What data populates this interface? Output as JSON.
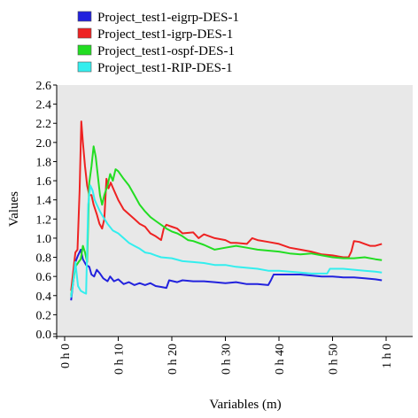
{
  "chart_data": {
    "type": "line",
    "title": "",
    "xlabel": "Variables (m)",
    "ylabel": "Values",
    "xlim": [
      0,
      60
    ],
    "ylim": [
      0,
      2.6
    ],
    "x_ticks": [
      {
        "value": 0,
        "label": "0 h 0"
      },
      {
        "value": 10,
        "label": "0 h 10"
      },
      {
        "value": 20,
        "label": "0 h 20"
      },
      {
        "value": 30,
        "label": "0 h 30"
      },
      {
        "value": 40,
        "label": "0 h 40"
      },
      {
        "value": 50,
        "label": "0 h 50"
      },
      {
        "value": 60,
        "label": "1 h 0"
      }
    ],
    "y_ticks": [
      {
        "value": 0.0,
        "label": "0.0"
      },
      {
        "value": 0.2,
        "label": "0.2"
      },
      {
        "value": 0.4,
        "label": "0.4"
      },
      {
        "value": 0.6,
        "label": "0.6"
      },
      {
        "value": 0.8,
        "label": "0.8"
      },
      {
        "value": 1.0,
        "label": "1.0"
      },
      {
        "value": 1.2,
        "label": "1.2"
      },
      {
        "value": 1.4,
        "label": "1.4"
      },
      {
        "value": 1.6,
        "label": "1.6"
      },
      {
        "value": 1.8,
        "label": "1.8"
      },
      {
        "value": 2.0,
        "label": "2.0"
      },
      {
        "value": 2.2,
        "label": "2.2"
      },
      {
        "value": 2.4,
        "label": "2.4"
      },
      {
        "value": 2.6,
        "label": "2.6"
      }
    ],
    "grid": false,
    "legend_position": "top",
    "plot_background": "#e8e8e8",
    "series": [
      {
        "name": "Project_test1-eigrp-DES-1",
        "color": "#2222dd",
        "points": [
          [
            1.2,
            0.35
          ],
          [
            1.6,
            0.55
          ],
          [
            2.0,
            0.75
          ],
          [
            2.5,
            0.82
          ],
          [
            3.0,
            0.88
          ],
          [
            3.4,
            0.78
          ],
          [
            4.0,
            0.72
          ],
          [
            4.6,
            0.7
          ],
          [
            5.0,
            0.62
          ],
          [
            5.5,
            0.6
          ],
          [
            6.0,
            0.67
          ],
          [
            6.6,
            0.63
          ],
          [
            7.2,
            0.58
          ],
          [
            8.0,
            0.55
          ],
          [
            8.5,
            0.6
          ],
          [
            9.2,
            0.55
          ],
          [
            10.0,
            0.57
          ],
          [
            11.0,
            0.52
          ],
          [
            12.0,
            0.54
          ],
          [
            13.0,
            0.51
          ],
          [
            14.0,
            0.53
          ],
          [
            15.0,
            0.51
          ],
          [
            16.0,
            0.53
          ],
          [
            17.0,
            0.5
          ],
          [
            18.0,
            0.49
          ],
          [
            19.0,
            0.48
          ],
          [
            19.5,
            0.56
          ],
          [
            21.0,
            0.54
          ],
          [
            22.0,
            0.56
          ],
          [
            24.0,
            0.55
          ],
          [
            26.0,
            0.55
          ],
          [
            28.0,
            0.54
          ],
          [
            30.0,
            0.53
          ],
          [
            32.0,
            0.54
          ],
          [
            34.0,
            0.52
          ],
          [
            36.0,
            0.52
          ],
          [
            38.0,
            0.51
          ],
          [
            38.5,
            0.56
          ],
          [
            39.0,
            0.62
          ],
          [
            40.0,
            0.62
          ],
          [
            42.0,
            0.62
          ],
          [
            44.0,
            0.62
          ],
          [
            46.0,
            0.61
          ],
          [
            48.0,
            0.6
          ],
          [
            50.0,
            0.6
          ],
          [
            52.0,
            0.59
          ],
          [
            54.0,
            0.59
          ],
          [
            56.0,
            0.58
          ],
          [
            58.0,
            0.57
          ],
          [
            59.2,
            0.56
          ]
        ]
      },
      {
        "name": "Project_test1-igrp-DES-1",
        "color": "#ee2222",
        "points": [
          [
            1.2,
            0.45
          ],
          [
            1.6,
            0.65
          ],
          [
            2.0,
            0.85
          ],
          [
            2.4,
            0.88
          ],
          [
            2.8,
            1.5
          ],
          [
            3.1,
            2.22
          ],
          [
            3.4,
            2.0
          ],
          [
            3.8,
            1.75
          ],
          [
            4.2,
            1.55
          ],
          [
            4.6,
            1.45
          ],
          [
            5.0,
            1.45
          ],
          [
            5.4,
            1.35
          ],
          [
            6.0,
            1.25
          ],
          [
            6.5,
            1.15
          ],
          [
            7.0,
            1.1
          ],
          [
            7.4,
            1.2
          ],
          [
            7.8,
            1.62
          ],
          [
            8.2,
            1.52
          ],
          [
            8.6,
            1.58
          ],
          [
            9.2,
            1.5
          ],
          [
            10.0,
            1.4
          ],
          [
            11.0,
            1.3
          ],
          [
            12.0,
            1.25
          ],
          [
            13.0,
            1.2
          ],
          [
            14.0,
            1.15
          ],
          [
            15.0,
            1.12
          ],
          [
            16.0,
            1.05
          ],
          [
            17.0,
            1.02
          ],
          [
            18.0,
            0.98
          ],
          [
            18.5,
            1.1
          ],
          [
            19.0,
            1.14
          ],
          [
            20.0,
            1.12
          ],
          [
            21.0,
            1.1
          ],
          [
            22.0,
            1.05
          ],
          [
            24.0,
            1.06
          ],
          [
            25.0,
            1.0
          ],
          [
            26.0,
            1.04
          ],
          [
            28.0,
            1.0
          ],
          [
            30.0,
            0.98
          ],
          [
            31.0,
            0.95
          ],
          [
            32.0,
            0.95
          ],
          [
            34.0,
            0.94
          ],
          [
            35.0,
            1.0
          ],
          [
            36.0,
            0.98
          ],
          [
            38.0,
            0.96
          ],
          [
            40.0,
            0.94
          ],
          [
            42.0,
            0.9
          ],
          [
            44.0,
            0.88
          ],
          [
            46.0,
            0.86
          ],
          [
            48.0,
            0.83
          ],
          [
            50.0,
            0.82
          ],
          [
            52.0,
            0.8
          ],
          [
            53.0,
            0.8
          ],
          [
            53.5,
            0.86
          ],
          [
            54.0,
            0.97
          ],
          [
            55.0,
            0.96
          ],
          [
            56.0,
            0.94
          ],
          [
            57.0,
            0.92
          ],
          [
            58.0,
            0.92
          ],
          [
            59.2,
            0.94
          ]
        ]
      },
      {
        "name": "Project_test1-ospf-DES-1",
        "color": "#22dd22",
        "points": [
          [
            1.2,
            0.4
          ],
          [
            2.0,
            0.7
          ],
          [
            2.6,
            0.75
          ],
          [
            3.0,
            0.78
          ],
          [
            3.4,
            0.92
          ],
          [
            3.8,
            0.85
          ],
          [
            4.2,
            0.75
          ],
          [
            4.6,
            1.58
          ],
          [
            5.0,
            1.75
          ],
          [
            5.4,
            1.96
          ],
          [
            5.8,
            1.85
          ],
          [
            6.2,
            1.65
          ],
          [
            6.6,
            1.45
          ],
          [
            7.0,
            1.35
          ],
          [
            7.4,
            1.45
          ],
          [
            8.0,
            1.55
          ],
          [
            8.5,
            1.67
          ],
          [
            9.0,
            1.6
          ],
          [
            9.5,
            1.72
          ],
          [
            10.0,
            1.7
          ],
          [
            11.0,
            1.62
          ],
          [
            12.0,
            1.55
          ],
          [
            13.0,
            1.45
          ],
          [
            14.0,
            1.35
          ],
          [
            15.0,
            1.28
          ],
          [
            16.0,
            1.22
          ],
          [
            17.0,
            1.18
          ],
          [
            18.0,
            1.14
          ],
          [
            19.0,
            1.1
          ],
          [
            20.0,
            1.07
          ],
          [
            21.0,
            1.05
          ],
          [
            22.0,
            1.02
          ],
          [
            23.0,
            0.98
          ],
          [
            24.0,
            0.97
          ],
          [
            26.0,
            0.93
          ],
          [
            28.0,
            0.88
          ],
          [
            30.0,
            0.9
          ],
          [
            32.0,
            0.92
          ],
          [
            34.0,
            0.9
          ],
          [
            36.0,
            0.88
          ],
          [
            38.0,
            0.87
          ],
          [
            40.0,
            0.86
          ],
          [
            42.0,
            0.84
          ],
          [
            44.0,
            0.83
          ],
          [
            46.0,
            0.84
          ],
          [
            48.0,
            0.82
          ],
          [
            50.0,
            0.8
          ],
          [
            52.0,
            0.79
          ],
          [
            54.0,
            0.79
          ],
          [
            56.0,
            0.8
          ],
          [
            58.0,
            0.78
          ],
          [
            59.2,
            0.77
          ]
        ]
      },
      {
        "name": "Project_test1-RIP-DES-1",
        "color": "#33eeee",
        "points": [
          [
            1.2,
            0.38
          ],
          [
            1.6,
            0.55
          ],
          [
            2.0,
            0.75
          ],
          [
            2.5,
            0.5
          ],
          [
            3.0,
            0.45
          ],
          [
            3.6,
            0.43
          ],
          [
            4.0,
            0.42
          ],
          [
            4.4,
            1.35
          ],
          [
            4.8,
            1.55
          ],
          [
            5.2,
            1.5
          ],
          [
            5.6,
            1.4
          ],
          [
            6.0,
            1.35
          ],
          [
            6.6,
            1.28
          ],
          [
            7.2,
            1.22
          ],
          [
            8.0,
            1.15
          ],
          [
            9.0,
            1.08
          ],
          [
            10.0,
            1.05
          ],
          [
            11.0,
            1.0
          ],
          [
            12.0,
            0.95
          ],
          [
            13.0,
            0.92
          ],
          [
            14.0,
            0.89
          ],
          [
            15.0,
            0.85
          ],
          [
            16.0,
            0.84
          ],
          [
            17.0,
            0.82
          ],
          [
            18.0,
            0.8
          ],
          [
            20.0,
            0.79
          ],
          [
            22.0,
            0.76
          ],
          [
            24.0,
            0.75
          ],
          [
            26.0,
            0.74
          ],
          [
            28.0,
            0.72
          ],
          [
            30.0,
            0.72
          ],
          [
            32.0,
            0.7
          ],
          [
            34.0,
            0.69
          ],
          [
            36.0,
            0.68
          ],
          [
            38.0,
            0.66
          ],
          [
            40.0,
            0.66
          ],
          [
            42.0,
            0.65
          ],
          [
            44.0,
            0.64
          ],
          [
            46.0,
            0.63
          ],
          [
            48.0,
            0.63
          ],
          [
            49.0,
            0.63
          ],
          [
            49.5,
            0.68
          ],
          [
            50.0,
            0.68
          ],
          [
            52.0,
            0.68
          ],
          [
            54.0,
            0.67
          ],
          [
            56.0,
            0.66
          ],
          [
            58.0,
            0.65
          ],
          [
            59.2,
            0.64
          ]
        ]
      }
    ]
  }
}
